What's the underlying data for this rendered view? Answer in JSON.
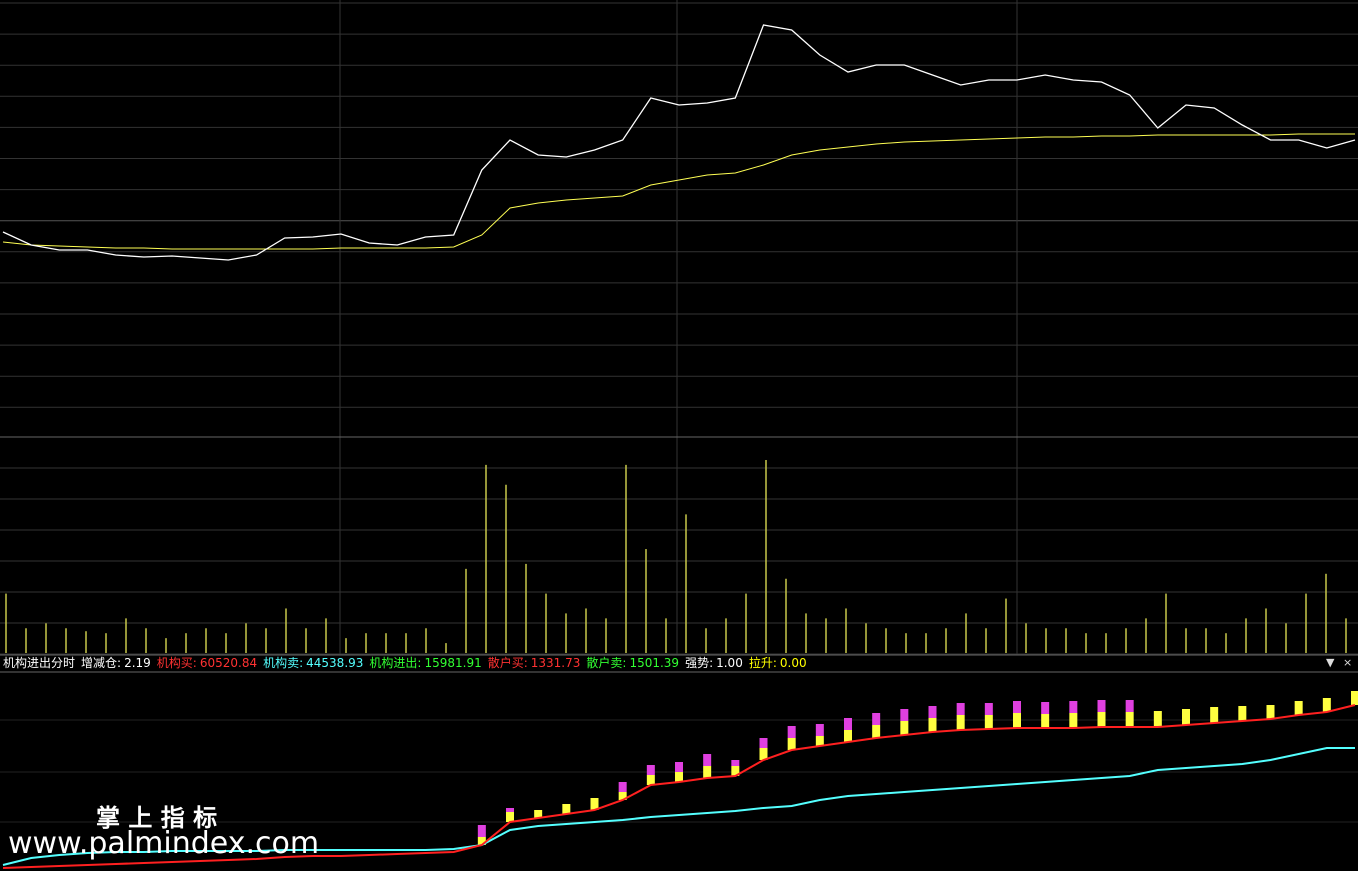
{
  "header": {
    "title": "机构进出分时",
    "indicators": [
      {
        "label": "增减仓:",
        "value": "2.19",
        "color": "#ffffff"
      },
      {
        "label": "机构买:",
        "value": "60520.84",
        "color": "#ff3232"
      },
      {
        "label": "机构卖:",
        "value": "44538.93",
        "color": "#54ffff"
      },
      {
        "label": "机构进出:",
        "value": "15981.91",
        "color": "#32ff32"
      },
      {
        "label": "散户买:",
        "value": "1331.73",
        "color": "#ff3232"
      },
      {
        "label": "散户卖:",
        "value": "1501.39",
        "color": "#32ff32"
      },
      {
        "label": "强势:",
        "value": "1.00",
        "color": "#ffffff"
      },
      {
        "label": "拉升:",
        "value": "0.00",
        "color": "#ffff00"
      }
    ]
  },
  "watermark": {
    "title": "掌 上 指 标",
    "url": "www.palmindex.com"
  },
  "price_panel": {
    "ylim": [
      0,
      437
    ],
    "price_color": "#ffffff",
    "average_color": "#ffff54",
    "price": [
      205,
      192,
      187,
      187,
      182,
      180,
      181,
      179,
      177,
      182,
      199,
      200,
      203,
      194,
      192,
      200,
      202,
      267,
      297,
      282,
      280,
      287,
      297,
      339,
      332,
      334,
      339,
      412,
      407,
      382,
      365,
      372,
      372,
      362,
      352,
      357,
      357,
      362,
      357,
      355,
      342,
      309,
      332,
      329,
      312,
      297,
      297,
      289,
      297
    ],
    "average": [
      195,
      192,
      191,
      190,
      189,
      189,
      188,
      188,
      188,
      188,
      188,
      188,
      189,
      189,
      189,
      189,
      190,
      202,
      229,
      234,
      237,
      239,
      241,
      252,
      257,
      262,
      264,
      272,
      282,
      287,
      290,
      293,
      295,
      296,
      297,
      298,
      299,
      300,
      300,
      301,
      301,
      302,
      302,
      302,
      302,
      302,
      303,
      303,
      303
    ]
  },
  "volume_panel": {
    "ylim": [
      0,
      200
    ],
    "color": "#c8c84a",
    "values": [
      60,
      25,
      30,
      25,
      22,
      20,
      35,
      25,
      15,
      20,
      25,
      20,
      30,
      25,
      45,
      25,
      35,
      15,
      20,
      20,
      20,
      25,
      10,
      85,
      190,
      170,
      90,
      60,
      40,
      45,
      35,
      190,
      105,
      35,
      140,
      25,
      35,
      60,
      195,
      75,
      40,
      35,
      45,
      30,
      25,
      20,
      20,
      25,
      40,
      25,
      55,
      30,
      25,
      25,
      20,
      20,
      25,
      35,
      60,
      25,
      25,
      20,
      35,
      45,
      30,
      60,
      80,
      35
    ]
  },
  "indicator_panel": {
    "ylim": [
      0,
      199
    ],
    "buy_color": "#ff2020",
    "sell_color": "#54ffff",
    "yellow_color": "#ffff40",
    "magenta_color": "#e040e0",
    "buy": [
      3,
      4,
      5,
      6,
      7,
      8,
      9,
      10,
      11,
      12,
      14,
      15,
      15,
      16,
      17,
      18,
      19,
      26,
      49,
      53,
      57,
      61,
      71,
      86,
      89,
      93,
      95,
      111,
      121,
      125,
      129,
      133,
      136,
      139,
      141,
      142,
      143,
      143,
      143,
      144,
      144,
      144,
      146,
      148,
      150,
      152,
      156,
      159,
      166
    ],
    "sell": [
      6,
      13,
      16,
      18,
      19,
      19,
      20,
      20,
      20,
      20,
      21,
      21,
      21,
      21,
      21,
      21,
      22,
      26,
      41,
      45,
      47,
      49,
      51,
      54,
      56,
      58,
      60,
      63,
      65,
      71,
      75,
      77,
      79,
      81,
      83,
      85,
      87,
      89,
      91,
      93,
      95,
      101,
      103,
      105,
      107,
      111,
      117,
      123,
      123
    ],
    "yellow": [
      null,
      null,
      null,
      null,
      null,
      null,
      null,
      null,
      null,
      null,
      null,
      null,
      null,
      null,
      null,
      null,
      null,
      8,
      10,
      8,
      10,
      12,
      8,
      10,
      10,
      12,
      10,
      12,
      12,
      10,
      12,
      13,
      14,
      14,
      15,
      14,
      15,
      14,
      15,
      15,
      15,
      16,
      16,
      16,
      15,
      14,
      14,
      14,
      14
    ],
    "magenta": [
      null,
      null,
      null,
      null,
      null,
      null,
      null,
      null,
      null,
      null,
      null,
      null,
      null,
      null,
      null,
      null,
      null,
      12,
      4,
      0,
      0,
      0,
      10,
      10,
      10,
      12,
      6,
      10,
      12,
      12,
      12,
      12,
      12,
      12,
      12,
      12,
      12,
      12,
      12,
      12,
      12,
      0,
      0,
      0,
      0,
      0,
      0,
      0,
      0
    ]
  }
}
